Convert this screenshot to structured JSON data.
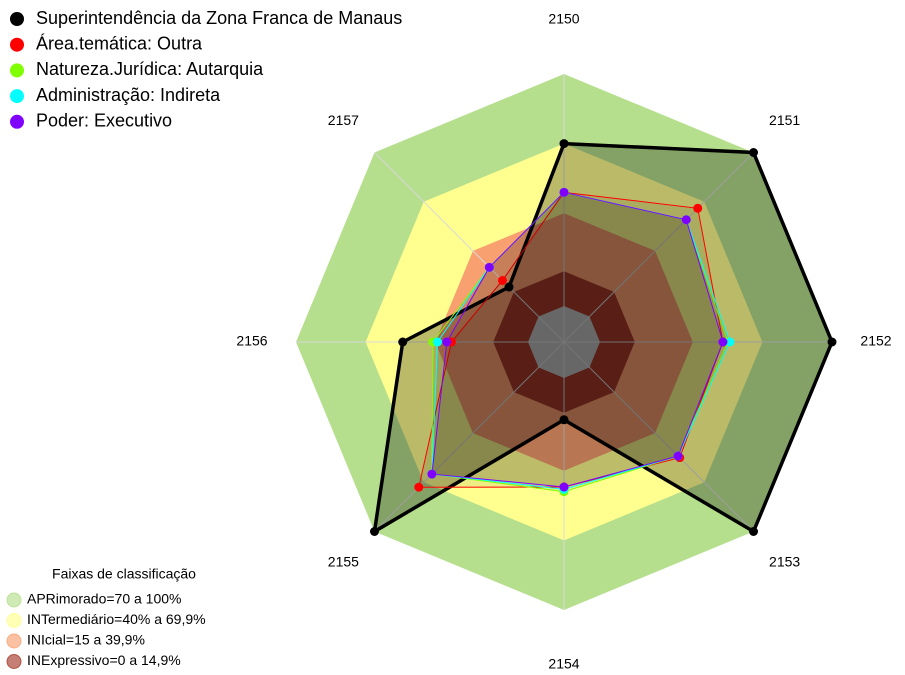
{
  "chart_data": {
    "type": "radar",
    "categories": [
      "2150",
      "2151",
      "2152",
      "2153",
      "2154",
      "2155",
      "2156",
      "2157"
    ],
    "rlim": [
      0,
      100
    ],
    "bands_title": "Faixas de classificação",
    "bands": [
      {
        "name": "APRimorado=70 a 100%",
        "from": 70,
        "to": 100,
        "color": "#b5df8c"
      },
      {
        "name": "INTermediário=40% a 69,9%",
        "from": 40,
        "to": 70,
        "color": "#ffff8f"
      },
      {
        "name": "INIcial=15 a 39,9%",
        "from": 15,
        "to": 40,
        "color": "#f9a070"
      },
      {
        "name": "INExpressivo=0 a 14,9%",
        "from": 0,
        "to": 15,
        "color": "#a63b2a"
      }
    ],
    "series": [
      {
        "name": "Superintendência da Zona Franca de Manaus",
        "color": "#000000",
        "values": [
          70,
          100,
          100,
          100,
          18,
          100,
          54,
          18
        ]
      },
      {
        "name": "Área.temática: Outra",
        "color": "#ff0000",
        "values": [
          49,
          66,
          53,
          55,
          47,
          73,
          33,
          22
        ]
      },
      {
        "name": "Natureza.Jurídica: Autarquia",
        "color": "#80ff00",
        "values": [
          49,
          59,
          55,
          54,
          49,
          65,
          41,
          30
        ]
      },
      {
        "name": "Administração: Indireta",
        "color": "#00ffff",
        "values": [
          49,
          59,
          56,
          54,
          48,
          65,
          39,
          30
        ]
      },
      {
        "name": "Poder: Executivo",
        "color": "#8000ff",
        "values": [
          49,
          59,
          53,
          54,
          47,
          65,
          35,
          30
        ]
      }
    ]
  }
}
